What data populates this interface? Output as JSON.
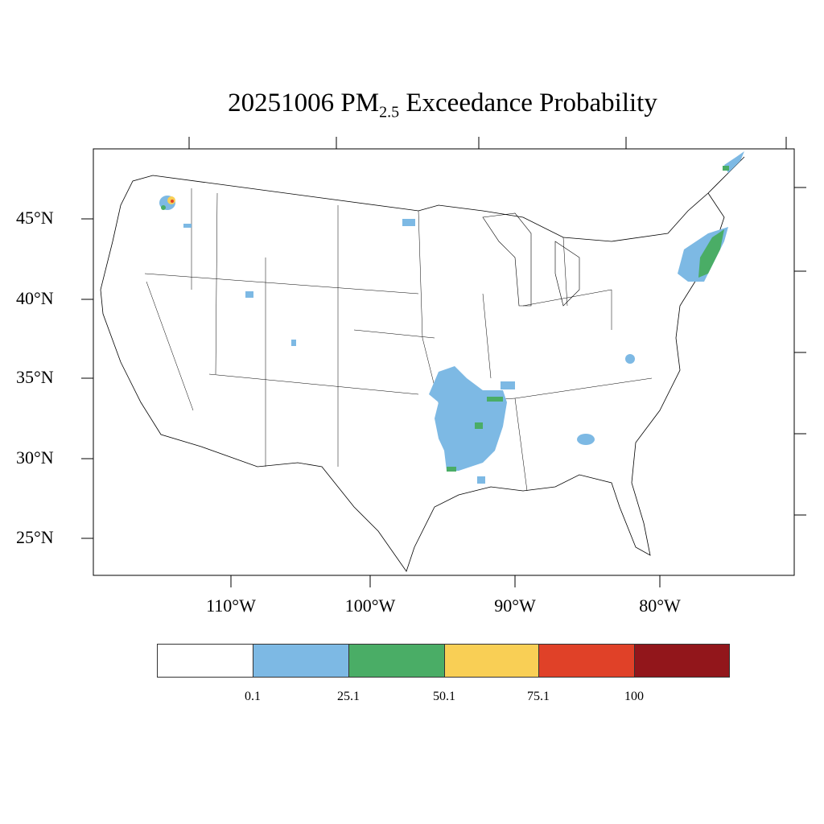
{
  "title": {
    "prefix": "20251006 PM",
    "subscript": "2.5",
    "suffix": " Exceedance Probability"
  },
  "lat_labels": [
    "45°N",
    "40°N",
    "35°N",
    "30°N",
    "25°N"
  ],
  "lon_labels": [
    "110°W",
    "100°W",
    "90°W",
    "80°W"
  ],
  "colorbar": {
    "colors": [
      "#ffffff",
      "#7db9e4",
      "#4aad66",
      "#f9cf55",
      "#e04128",
      "#92161b"
    ],
    "labels": [
      "0.1",
      "25.1",
      "50.1",
      "75.1",
      "100"
    ]
  }
}
